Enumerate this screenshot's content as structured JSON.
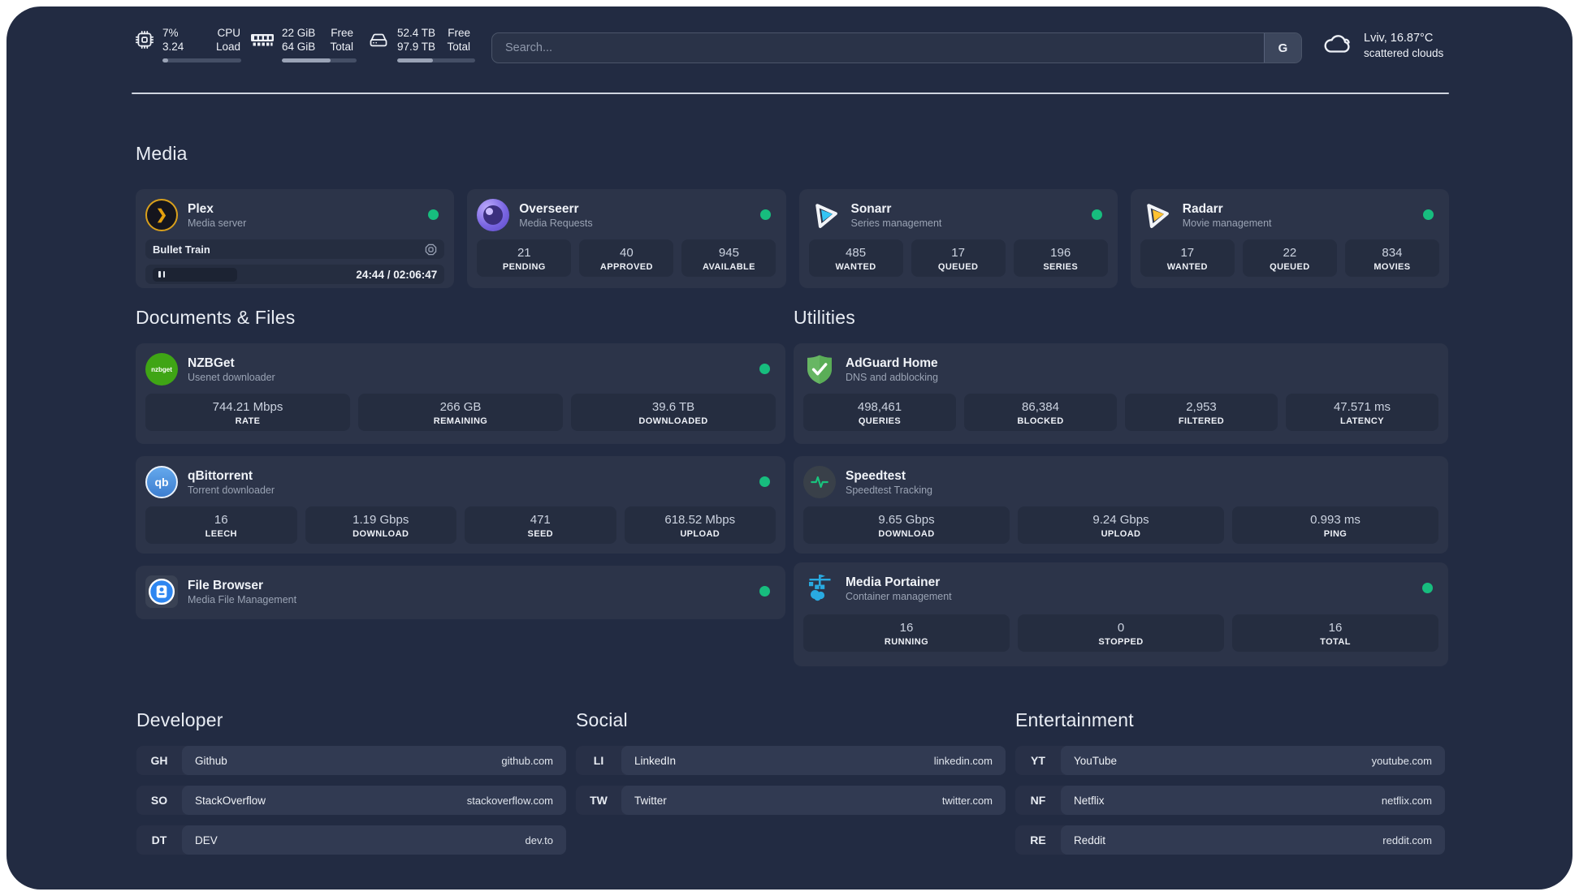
{
  "topbar": {
    "cpu": {
      "value_top": "7%",
      "value_bottom": "3.24",
      "label_top": "CPU",
      "label_bottom": "Load",
      "progress_pct": 7
    },
    "memory": {
      "value_top": "22 GiB",
      "value_bottom": "64 GiB",
      "label_top": "Free",
      "label_bottom": "Total",
      "progress_pct": 65
    },
    "storage": {
      "value_top": "52.4 TB",
      "value_bottom": "97.9 TB",
      "label_top": "Free",
      "label_bottom": "Total",
      "progress_pct": 46
    },
    "search": {
      "placeholder": "Search...",
      "engine": "G"
    },
    "weather": {
      "location": "Lviv, 16.87°C",
      "condition": "scattered clouds"
    }
  },
  "sections": {
    "media": {
      "title": "Media",
      "plex": {
        "name": "Plex",
        "subtitle": "Media server",
        "now_playing": "Bullet Train",
        "time": "24:44 / 02:06:47"
      },
      "overseerr": {
        "name": "Overseerr",
        "subtitle": "Media Requests",
        "stats": [
          {
            "value": "21",
            "label": "PENDING"
          },
          {
            "value": "40",
            "label": "APPROVED"
          },
          {
            "value": "945",
            "label": "AVAILABLE"
          }
        ]
      },
      "sonarr": {
        "name": "Sonarr",
        "subtitle": "Series management",
        "stats": [
          {
            "value": "485",
            "label": "WANTED"
          },
          {
            "value": "17",
            "label": "QUEUED"
          },
          {
            "value": "196",
            "label": "SERIES"
          }
        ]
      },
      "radarr": {
        "name": "Radarr",
        "subtitle": "Movie management",
        "stats": [
          {
            "value": "17",
            "label": "WANTED"
          },
          {
            "value": "22",
            "label": "QUEUED"
          },
          {
            "value": "834",
            "label": "MOVIES"
          }
        ]
      }
    },
    "documents": {
      "title": "Documents & Files",
      "nzbget": {
        "name": "NZBGet",
        "subtitle": "Usenet downloader",
        "icon_text": "nzbget",
        "stats": [
          {
            "value": "744.21 Mbps",
            "label": "RATE"
          },
          {
            "value": "266 GB",
            "label": "REMAINING"
          },
          {
            "value": "39.6 TB",
            "label": "DOWNLOADED"
          }
        ]
      },
      "qbittorrent": {
        "name": "qBittorrent",
        "subtitle": "Torrent downloader",
        "icon_text": "qb",
        "stats": [
          {
            "value": "16",
            "label": "LEECH"
          },
          {
            "value": "1.19 Gbps",
            "label": "DOWNLOAD"
          },
          {
            "value": "471",
            "label": "SEED"
          },
          {
            "value": "618.52 Mbps",
            "label": "UPLOAD"
          }
        ]
      },
      "filebrowser": {
        "name": "File Browser",
        "subtitle": "Media File Management"
      }
    },
    "utilities": {
      "title": "Utilities",
      "adguard": {
        "name": "AdGuard Home",
        "subtitle": "DNS and adblocking",
        "stats": [
          {
            "value": "498,461",
            "label": "QUERIES"
          },
          {
            "value": "86,384",
            "label": "BLOCKED"
          },
          {
            "value": "2,953",
            "label": "FILTERED"
          },
          {
            "value": "47.571 ms",
            "label": "LATENCY"
          }
        ]
      },
      "speedtest": {
        "name": "Speedtest",
        "subtitle": "Speedtest Tracking",
        "stats": [
          {
            "value": "9.65 Gbps",
            "label": "DOWNLOAD"
          },
          {
            "value": "9.24 Gbps",
            "label": "UPLOAD"
          },
          {
            "value": "0.993 ms",
            "label": "PING"
          }
        ]
      },
      "portainer": {
        "name": "Media Portainer",
        "subtitle": "Container management",
        "stats": [
          {
            "value": "16",
            "label": "RUNNING"
          },
          {
            "value": "0",
            "label": "STOPPED"
          },
          {
            "value": "16",
            "label": "TOTAL"
          }
        ]
      }
    },
    "developer": {
      "title": "Developer",
      "bookmarks": [
        {
          "abbr": "GH",
          "name": "Github",
          "url": "github.com"
        },
        {
          "abbr": "SO",
          "name": "StackOverflow",
          "url": "stackoverflow.com"
        },
        {
          "abbr": "DT",
          "name": "DEV",
          "url": "dev.to"
        }
      ]
    },
    "social": {
      "title": "Social",
      "bookmarks": [
        {
          "abbr": "LI",
          "name": "LinkedIn",
          "url": "linkedin.com"
        },
        {
          "abbr": "TW",
          "name": "Twitter",
          "url": "twitter.com"
        }
      ]
    },
    "entertainment": {
      "title": "Entertainment",
      "bookmarks": [
        {
          "abbr": "YT",
          "name": "YouTube",
          "url": "youtube.com"
        },
        {
          "abbr": "NF",
          "name": "Netflix",
          "url": "netflix.com"
        },
        {
          "abbr": "RE",
          "name": "Reddit",
          "url": "reddit.com"
        }
      ]
    }
  },
  "colors": {
    "status_online": "#17bd7e",
    "plex_accent": "#e5a00d",
    "sonarr_accent": "#35c5f4",
    "radarr_accent": "#ffc230",
    "background": "#222b42"
  }
}
